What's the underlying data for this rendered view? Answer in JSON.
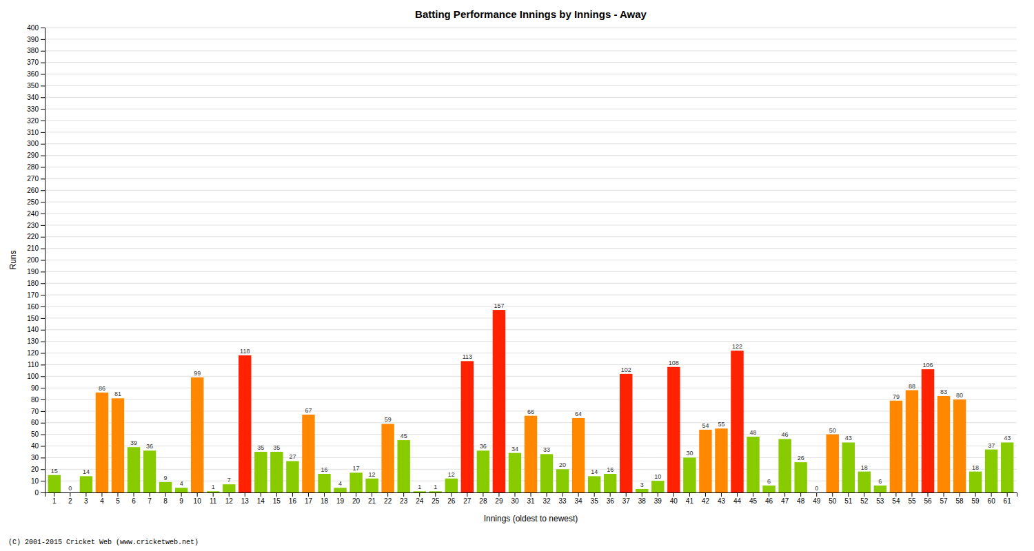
{
  "chart_data": {
    "type": "bar",
    "title": "Batting Performance Innings by Innings - Away",
    "x_label": "Innings (oldest to newest)",
    "y_label": "Runs",
    "footer": "(C) 2001-2015 Cricket Web (www.cricketweb.net)",
    "categories": [
      "1",
      "2",
      "3",
      "4",
      "5",
      "6",
      "7",
      "8",
      "9",
      "10",
      "11",
      "12",
      "13",
      "14",
      "15",
      "16",
      "17",
      "18",
      "19",
      "20",
      "21",
      "22",
      "23",
      "24",
      "25",
      "26",
      "27",
      "28",
      "29",
      "30",
      "31",
      "32",
      "33",
      "34",
      "35",
      "36",
      "37",
      "38",
      "39",
      "40",
      "41",
      "42",
      "43",
      "44",
      "45",
      "46",
      "47",
      "48",
      "49",
      "50",
      "51",
      "52",
      "53",
      "54",
      "55",
      "56",
      "57",
      "58",
      "59",
      "60",
      "61"
    ],
    "values": [
      15,
      0,
      14,
      86,
      81,
      39,
      36,
      9,
      4,
      99,
      1,
      7,
      118,
      35,
      35,
      27,
      67,
      16,
      4,
      17,
      12,
      59,
      45,
      1,
      1,
      12,
      113,
      36,
      157,
      34,
      66,
      33,
      20,
      64,
      14,
      16,
      102,
      3,
      10,
      108,
      30,
      54,
      55,
      122,
      48,
      6,
      46,
      26,
      0,
      50,
      43,
      18,
      6,
      79,
      88,
      106,
      83,
      80,
      18,
      37,
      43
    ],
    "colors": [
      "#88cc00",
      "#88cc00",
      "#88cc00",
      "#ff8800",
      "#ff8800",
      "#88cc00",
      "#88cc00",
      "#88cc00",
      "#88cc00",
      "#ff8800",
      "#88cc00",
      "#88cc00",
      "#ff2200",
      "#88cc00",
      "#88cc00",
      "#88cc00",
      "#ff8800",
      "#88cc00",
      "#88cc00",
      "#88cc00",
      "#88cc00",
      "#ff8800",
      "#88cc00",
      "#88cc00",
      "#88cc00",
      "#88cc00",
      "#ff2200",
      "#88cc00",
      "#ff2200",
      "#88cc00",
      "#ff8800",
      "#88cc00",
      "#88cc00",
      "#ff8800",
      "#88cc00",
      "#88cc00",
      "#ff2200",
      "#88cc00",
      "#88cc00",
      "#ff2200",
      "#88cc00",
      "#ff8800",
      "#ff8800",
      "#ff2200",
      "#88cc00",
      "#88cc00",
      "#88cc00",
      "#88cc00",
      "#88cc00",
      "#ff8800",
      "#88cc00",
      "#88cc00",
      "#88cc00",
      "#ff8800",
      "#ff8800",
      "#ff2200",
      "#ff8800",
      "#ff8800",
      "#88cc00",
      "#88cc00",
      "#88cc00"
    ],
    "ylim": [
      0,
      400
    ],
    "yticks": [
      0,
      10,
      20,
      30,
      40,
      50,
      60,
      70,
      80,
      90,
      100,
      110,
      120,
      130,
      140,
      150,
      160,
      170,
      180,
      190,
      200,
      210,
      220,
      230,
      240,
      250,
      260,
      270,
      280,
      290,
      300,
      310,
      320,
      330,
      340,
      350,
      360,
      370,
      380,
      390,
      400
    ],
    "grid": true,
    "data_labels": true
  }
}
